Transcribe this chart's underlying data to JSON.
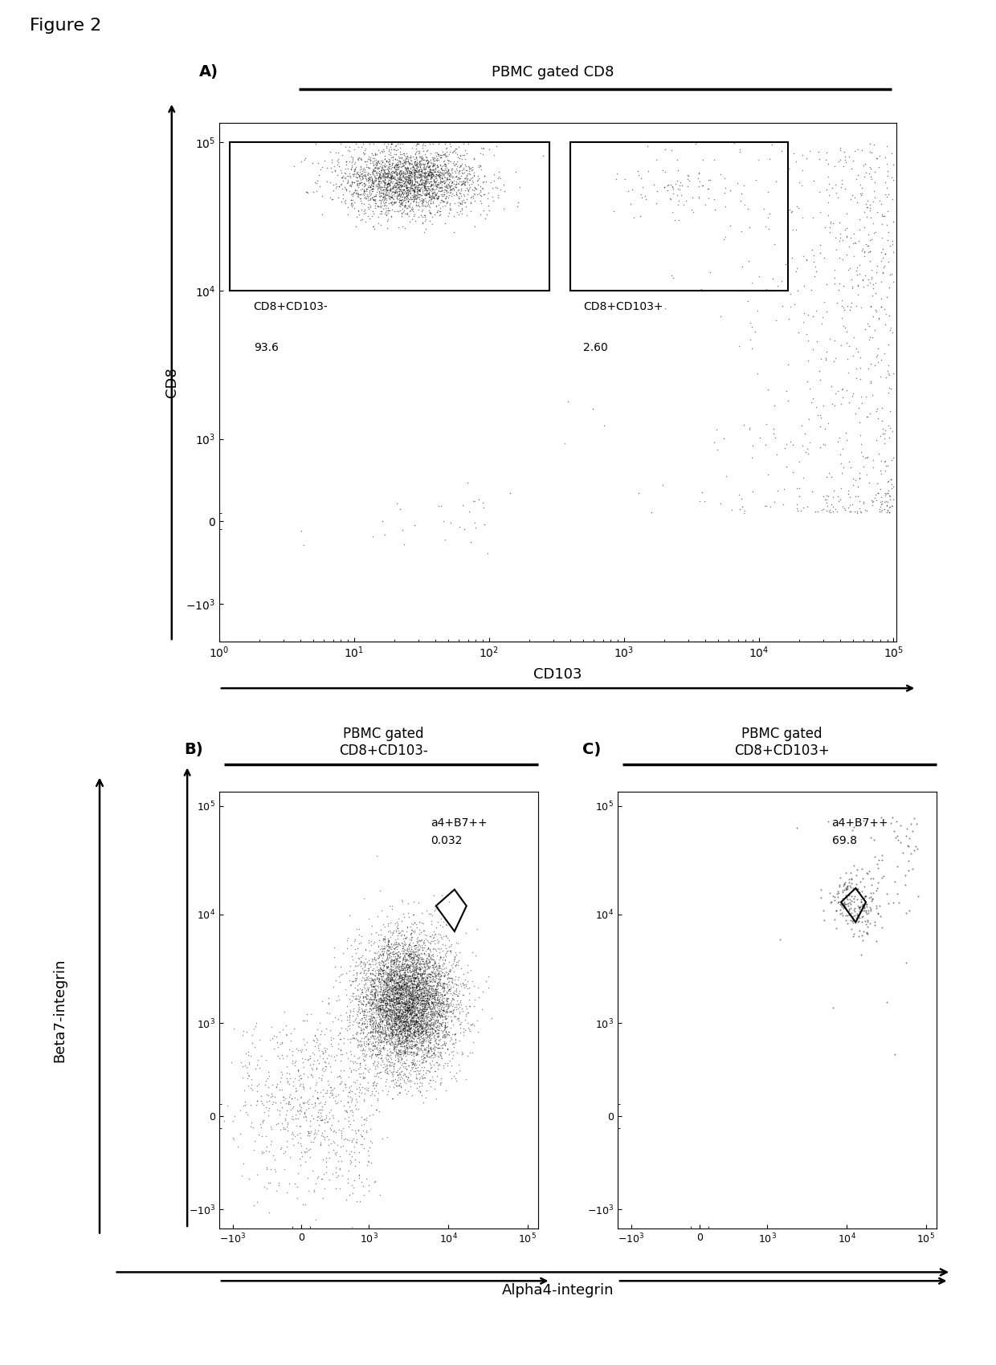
{
  "fig_label": "Figure 2",
  "panel_A": {
    "title": "PBMC gated CD8",
    "xlabel": "CD103",
    "ylabel": "CD8",
    "gate1_label": "CD8+CD103-",
    "gate1_value": "93.6",
    "gate2_label": "CD8+CD103+",
    "gate2_value": "2.60"
  },
  "panel_B": {
    "title": "PBMC gated\nCD8+CD103-",
    "gate_label": "a4+B7++",
    "gate_value": "0.032"
  },
  "panel_C": {
    "title": "PBMC gated\nCD8+CD103+",
    "gate_label": "a4+B7++",
    "gate_value": "69.8"
  },
  "xlabel_bottom": "Alpha4-integrin",
  "ylabel_bottom": "Beta7-integrin",
  "xlabel_A": "CD103",
  "ylabel_A": "CD8",
  "dot_color": "#000000",
  "scatter_alpha_A": 0.5,
  "scatter_size_A": 1.2,
  "scatter_alpha_B": 0.45,
  "scatter_size_B": 1.2,
  "scatter_alpha_C": 0.5,
  "scatter_size_C": 2.0
}
